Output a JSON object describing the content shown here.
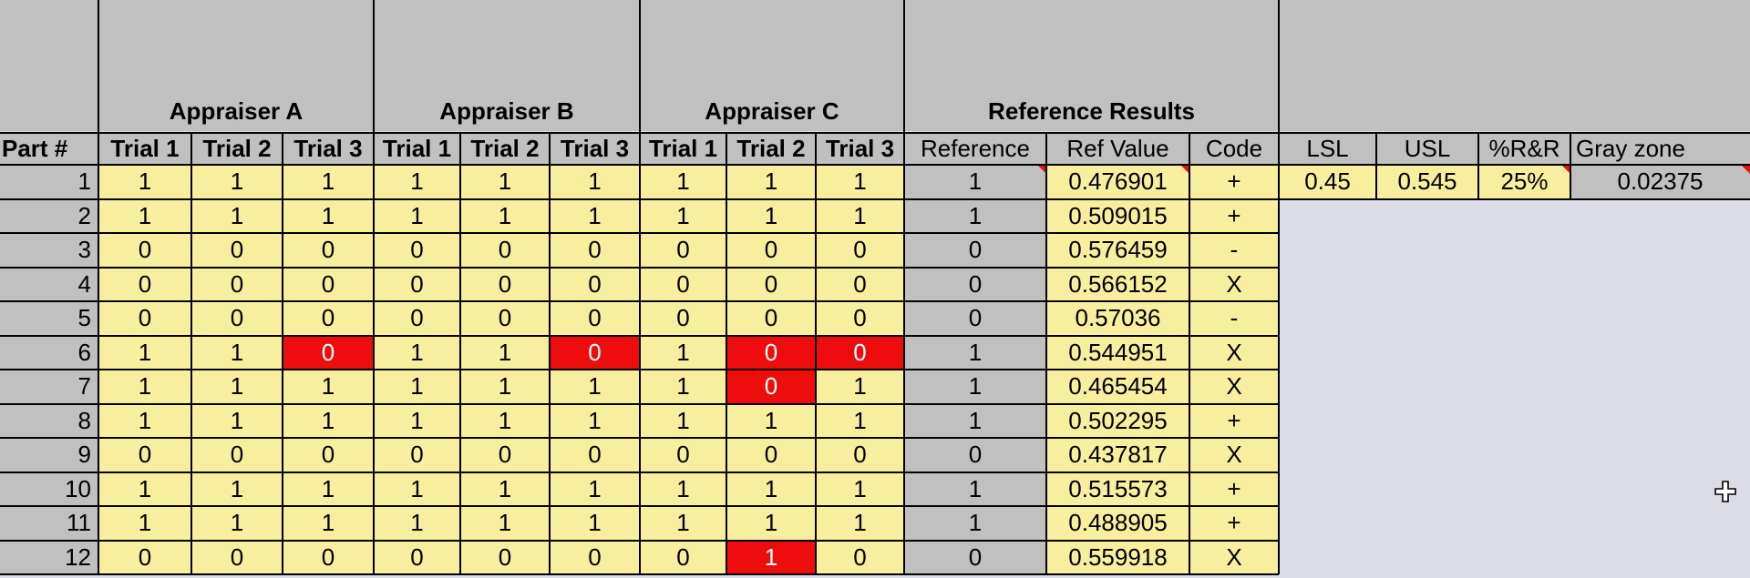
{
  "groups": [
    {
      "label": "",
      "from": 0,
      "to": 0
    },
    {
      "label": "Appraiser A",
      "from": 1,
      "to": 3
    },
    {
      "label": "Appraiser B",
      "from": 4,
      "to": 6
    },
    {
      "label": "Appraiser C",
      "from": 7,
      "to": 9
    },
    {
      "label": "Reference Results",
      "from": 10,
      "to": 12
    },
    {
      "label": "",
      "from": 13,
      "to": 16
    }
  ],
  "headers": [
    "Part #",
    "Trial 1",
    "Trial 2",
    "Trial 3",
    "Trial 1",
    "Trial 2",
    "Trial 3",
    "Trial 1",
    "Trial 2",
    "Trial 3",
    "Reference",
    "Ref Value",
    "Code",
    "LSL",
    "USL",
    "%R&R",
    "Gray zone"
  ],
  "params": {
    "lsl": "0.45",
    "usl": "0.545",
    "rr": "25%",
    "gray_zone": "0.02375"
  },
  "rows": [
    {
      "part": "1",
      "a": [
        "1",
        "1",
        "1"
      ],
      "b": [
        "1",
        "1",
        "1"
      ],
      "c": [
        "1",
        "1",
        "1"
      ],
      "ref": "1",
      "ref_value": "0.476901",
      "code": "+",
      "flags": []
    },
    {
      "part": "2",
      "a": [
        "1",
        "1",
        "1"
      ],
      "b": [
        "1",
        "1",
        "1"
      ],
      "c": [
        "1",
        "1",
        "1"
      ],
      "ref": "1",
      "ref_value": "0.509015",
      "code": "+",
      "flags": []
    },
    {
      "part": "3",
      "a": [
        "0",
        "0",
        "0"
      ],
      "b": [
        "0",
        "0",
        "0"
      ],
      "c": [
        "0",
        "0",
        "0"
      ],
      "ref": "0",
      "ref_value": "0.576459",
      "code": "-",
      "flags": []
    },
    {
      "part": "4",
      "a": [
        "0",
        "0",
        "0"
      ],
      "b": [
        "0",
        "0",
        "0"
      ],
      "c": [
        "0",
        "0",
        "0"
      ],
      "ref": "0",
      "ref_value": "0.566152",
      "code": "X",
      "flags": []
    },
    {
      "part": "5",
      "a": [
        "0",
        "0",
        "0"
      ],
      "b": [
        "0",
        "0",
        "0"
      ],
      "c": [
        "0",
        "0",
        "0"
      ],
      "ref": "0",
      "ref_value": "0.57036",
      "code": "-",
      "flags": []
    },
    {
      "part": "6",
      "a": [
        "1",
        "1",
        "0"
      ],
      "b": [
        "1",
        "1",
        "0"
      ],
      "c": [
        "1",
        "0",
        "0"
      ],
      "ref": "1",
      "ref_value": "0.544951",
      "code": "X",
      "flags": [
        3,
        6,
        8,
        9
      ]
    },
    {
      "part": "7",
      "a": [
        "1",
        "1",
        "1"
      ],
      "b": [
        "1",
        "1",
        "1"
      ],
      "c": [
        "1",
        "0",
        "1"
      ],
      "ref": "1",
      "ref_value": "0.465454",
      "code": "X",
      "flags": [
        8
      ]
    },
    {
      "part": "8",
      "a": [
        "1",
        "1",
        "1"
      ],
      "b": [
        "1",
        "1",
        "1"
      ],
      "c": [
        "1",
        "1",
        "1"
      ],
      "ref": "1",
      "ref_value": "0.502295",
      "code": "+",
      "flags": []
    },
    {
      "part": "9",
      "a": [
        "0",
        "0",
        "0"
      ],
      "b": [
        "0",
        "0",
        "0"
      ],
      "c": [
        "0",
        "0",
        "0"
      ],
      "ref": "0",
      "ref_value": "0.437817",
      "code": "X",
      "flags": []
    },
    {
      "part": "10",
      "a": [
        "1",
        "1",
        "1"
      ],
      "b": [
        "1",
        "1",
        "1"
      ],
      "c": [
        "1",
        "1",
        "1"
      ],
      "ref": "1",
      "ref_value": "0.515573",
      "code": "+",
      "flags": []
    },
    {
      "part": "11",
      "a": [
        "1",
        "1",
        "1"
      ],
      "b": [
        "1",
        "1",
        "1"
      ],
      "c": [
        "1",
        "1",
        "1"
      ],
      "ref": "1",
      "ref_value": "0.488905",
      "code": "+",
      "flags": []
    },
    {
      "part": "12",
      "a": [
        "0",
        "0",
        "0"
      ],
      "b": [
        "0",
        "0",
        "0"
      ],
      "c": [
        "0",
        "1",
        "0"
      ],
      "ref": "0",
      "ref_value": "0.559918",
      "code": "X",
      "flags": [
        8
      ]
    }
  ],
  "colors": {
    "input": "#f7ef9e",
    "flag": "#ee0d0d",
    "header": "#c0c0c0",
    "background": "#dcdce6",
    "comment_marker": "#e81010"
  },
  "icons": {
    "cursor": "move-cursor-icon"
  }
}
